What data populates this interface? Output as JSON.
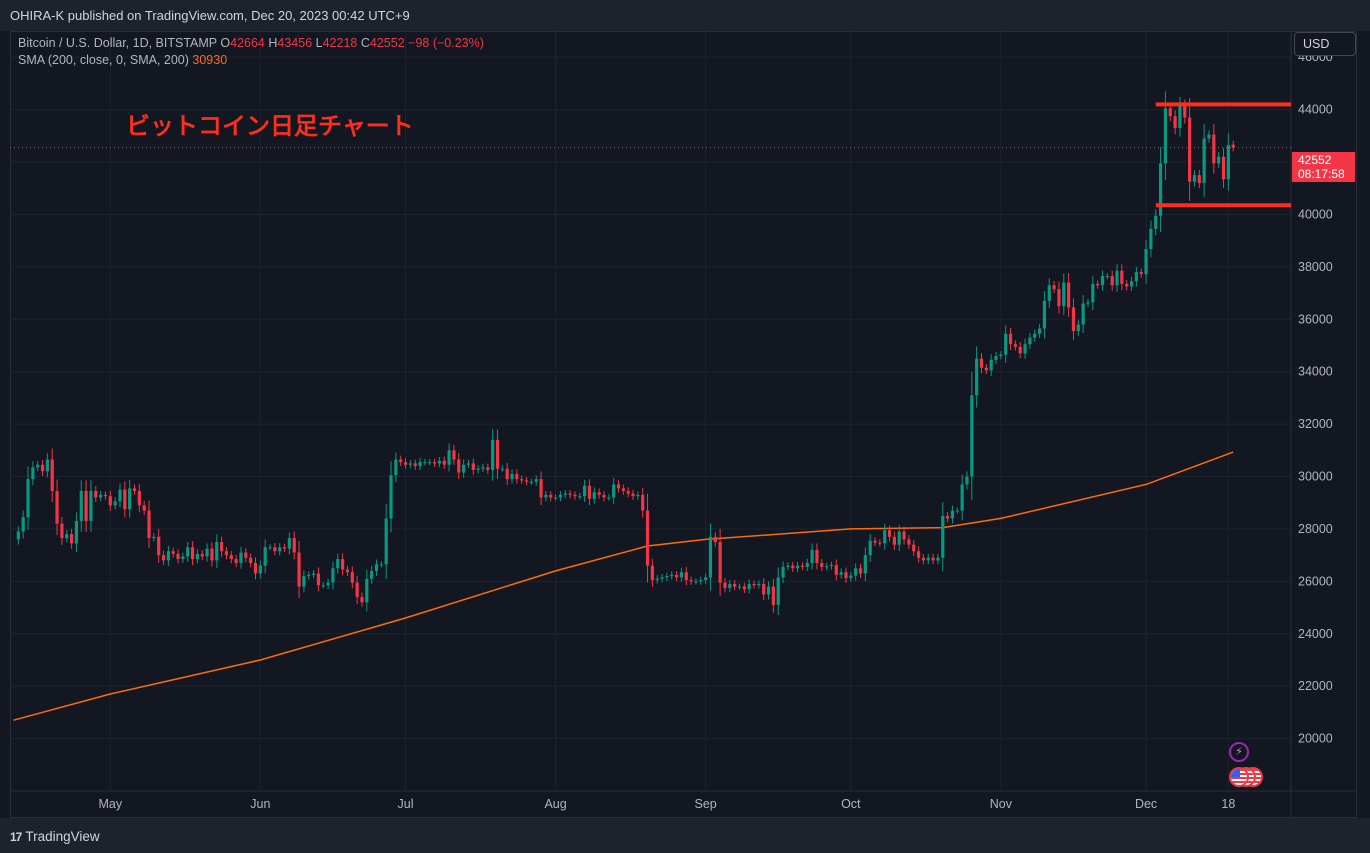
{
  "header": {
    "publisher_text": "OHIRA-K published on TradingView.com, Dec 20, 2023 00:42 UTC+9"
  },
  "legend": {
    "symbol": "Bitcoin / U.S. Dollar, 1D, BITSTAMP",
    "open_label": "O",
    "open": "42664",
    "high_label": "H",
    "high": "43456",
    "low_label": "L",
    "low": "42218",
    "close_label": "C",
    "close": "42552",
    "change": "−98 (−0.23%)",
    "sma_label": "SMA (200, close, 0, SMA, 200)",
    "sma_value": "30930"
  },
  "annotation": {
    "text": "ビットコイン日足チャート"
  },
  "currency_button": "USD",
  "last_price_tag": {
    "price": "42552",
    "countdown": "08:17:58"
  },
  "footer": {
    "brand": "TradingView",
    "brand_mark": "17"
  },
  "events": {
    "bolt_icon": "lightning-icon",
    "flag_icon": "us-flag-icon"
  },
  "colors": {
    "up": "#089981",
    "down": "#f23645",
    "sma": "#ff6d00",
    "annotation": "#ff2d1a",
    "background": "#131722"
  },
  "chart_data": {
    "type": "candlestick",
    "title": "Bitcoin / U.S. Dollar, 1D, BITSTAMP",
    "y_range": [
      18000,
      47000
    ],
    "y_ticks": [
      20000,
      22000,
      24000,
      26000,
      28000,
      30000,
      32000,
      34000,
      36000,
      38000,
      40000,
      42000,
      44000,
      46000
    ],
    "x_ticks": [
      "May",
      "Jun",
      "Jul",
      "Aug",
      "Sep",
      "Oct",
      "Nov",
      "Dec",
      "18"
    ],
    "x_start": "2023-04-11",
    "x_tick_dates": [
      "2023-05-01",
      "2023-06-01",
      "2023-07-01",
      "2023-08-01",
      "2023-09-01",
      "2023-10-01",
      "2023-11-01",
      "2023-12-01",
      "2023-12-18"
    ],
    "last_date": "2023-12-19",
    "closes": [
      27900,
      28450,
      29900,
      30350,
      30450,
      30200,
      30650,
      29450,
      28200,
      27650,
      27800,
      27450,
      28300,
      29450,
      28300,
      29450,
      29200,
      29300,
      29250,
      28900,
      29050,
      29500,
      28750,
      29550,
      29450,
      28900,
      28700,
      27650,
      27700,
      27000,
      26800,
      27150,
      27050,
      26850,
      26950,
      27300,
      26850,
      27050,
      26950,
      27250,
      26800,
      27500,
      27150,
      27000,
      26850,
      26700,
      27100,
      26900,
      26700,
      26300,
      26600,
      27300,
      27300,
      27150,
      27300,
      27250,
      27650,
      27100,
      25800,
      26200,
      26250,
      26300,
      25850,
      25850,
      25950,
      26500,
      26850,
      26450,
      26350,
      25950,
      25400,
      25200,
      26100,
      26400,
      26650,
      26650,
      28400,
      30050,
      30650,
      30550,
      30450,
      30500,
      30400,
      30550,
      30550,
      30550,
      30500,
      30600,
      30450,
      31000,
      30650,
      30150,
      30450,
      30500,
      30250,
      30300,
      30350,
      30250,
      31400,
      30300,
      30300,
      29900,
      30100,
      29900,
      29850,
      29800,
      29800,
      29900,
      29200,
      29300,
      29200,
      29200,
      29300,
      29350,
      29300,
      29250,
      29250,
      29650,
      29150,
      29400,
      29300,
      29200,
      29200,
      29700,
      29550,
      29450,
      29350,
      29250,
      29300,
      28700,
      26600,
      26050,
      26100,
      26150,
      26200,
      26250,
      26150,
      26350,
      26050,
      26000,
      26000,
      26050,
      26150,
      27700,
      27500,
      25950,
      25750,
      25900,
      25800,
      25800,
      25700,
      25900,
      25850,
      25900,
      25500,
      25800,
      25100,
      26150,
      26550,
      26600,
      26500,
      26600,
      26550,
      26700,
      27200,
      26700,
      26550,
      26580,
      26620,
      26250,
      26350,
      26120,
      26220,
      26500,
      26300,
      27000,
      27550,
      27480,
      27450,
      27950,
      27700,
      27400,
      27900,
      27600,
      27400,
      27150,
      26900,
      26800,
      26900,
      26800,
      26900,
      28500,
      28400,
      28700,
      28700,
      29700,
      30000,
      33100,
      34500,
      34150,
      34050,
      34450,
      34600,
      34650,
      35450,
      35050,
      34950,
      34700,
      35050,
      35300,
      35450,
      35650,
      36700,
      37300,
      37150,
      36500,
      37400,
      36450,
      35550,
      35800,
      36600,
      36650,
      37350,
      37300,
      37650,
      37650,
      37300,
      37850,
      37350,
      37250,
      37450,
      37800,
      37720,
      38680,
      39450,
      39950,
      41950,
      44050,
      43750,
      43300,
      44150,
      43700,
      41250,
      41500,
      41200,
      42900,
      43050,
      41950,
      42200,
      41350,
      42650,
      42552
    ],
    "sma_points": [
      [
        "2023-04-11",
        20700
      ],
      [
        "2023-05-01",
        21700
      ],
      [
        "2023-06-01",
        23000
      ],
      [
        "2023-07-01",
        24600
      ],
      [
        "2023-08-01",
        26400
      ],
      [
        "2023-08-20",
        27350
      ],
      [
        "2023-09-01",
        27600
      ],
      [
        "2023-10-01",
        28000
      ],
      [
        "2023-10-20",
        28050
      ],
      [
        "2023-11-01",
        28400
      ],
      [
        "2023-12-01",
        29700
      ],
      [
        "2023-12-19",
        30930
      ]
    ],
    "levels": [
      {
        "y": 44200,
        "x_from": "2023-12-03",
        "x_to": "2023-12-31"
      },
      {
        "y": 40350,
        "x_from": "2023-12-03",
        "x_to": "2023-12-31"
      }
    ]
  }
}
